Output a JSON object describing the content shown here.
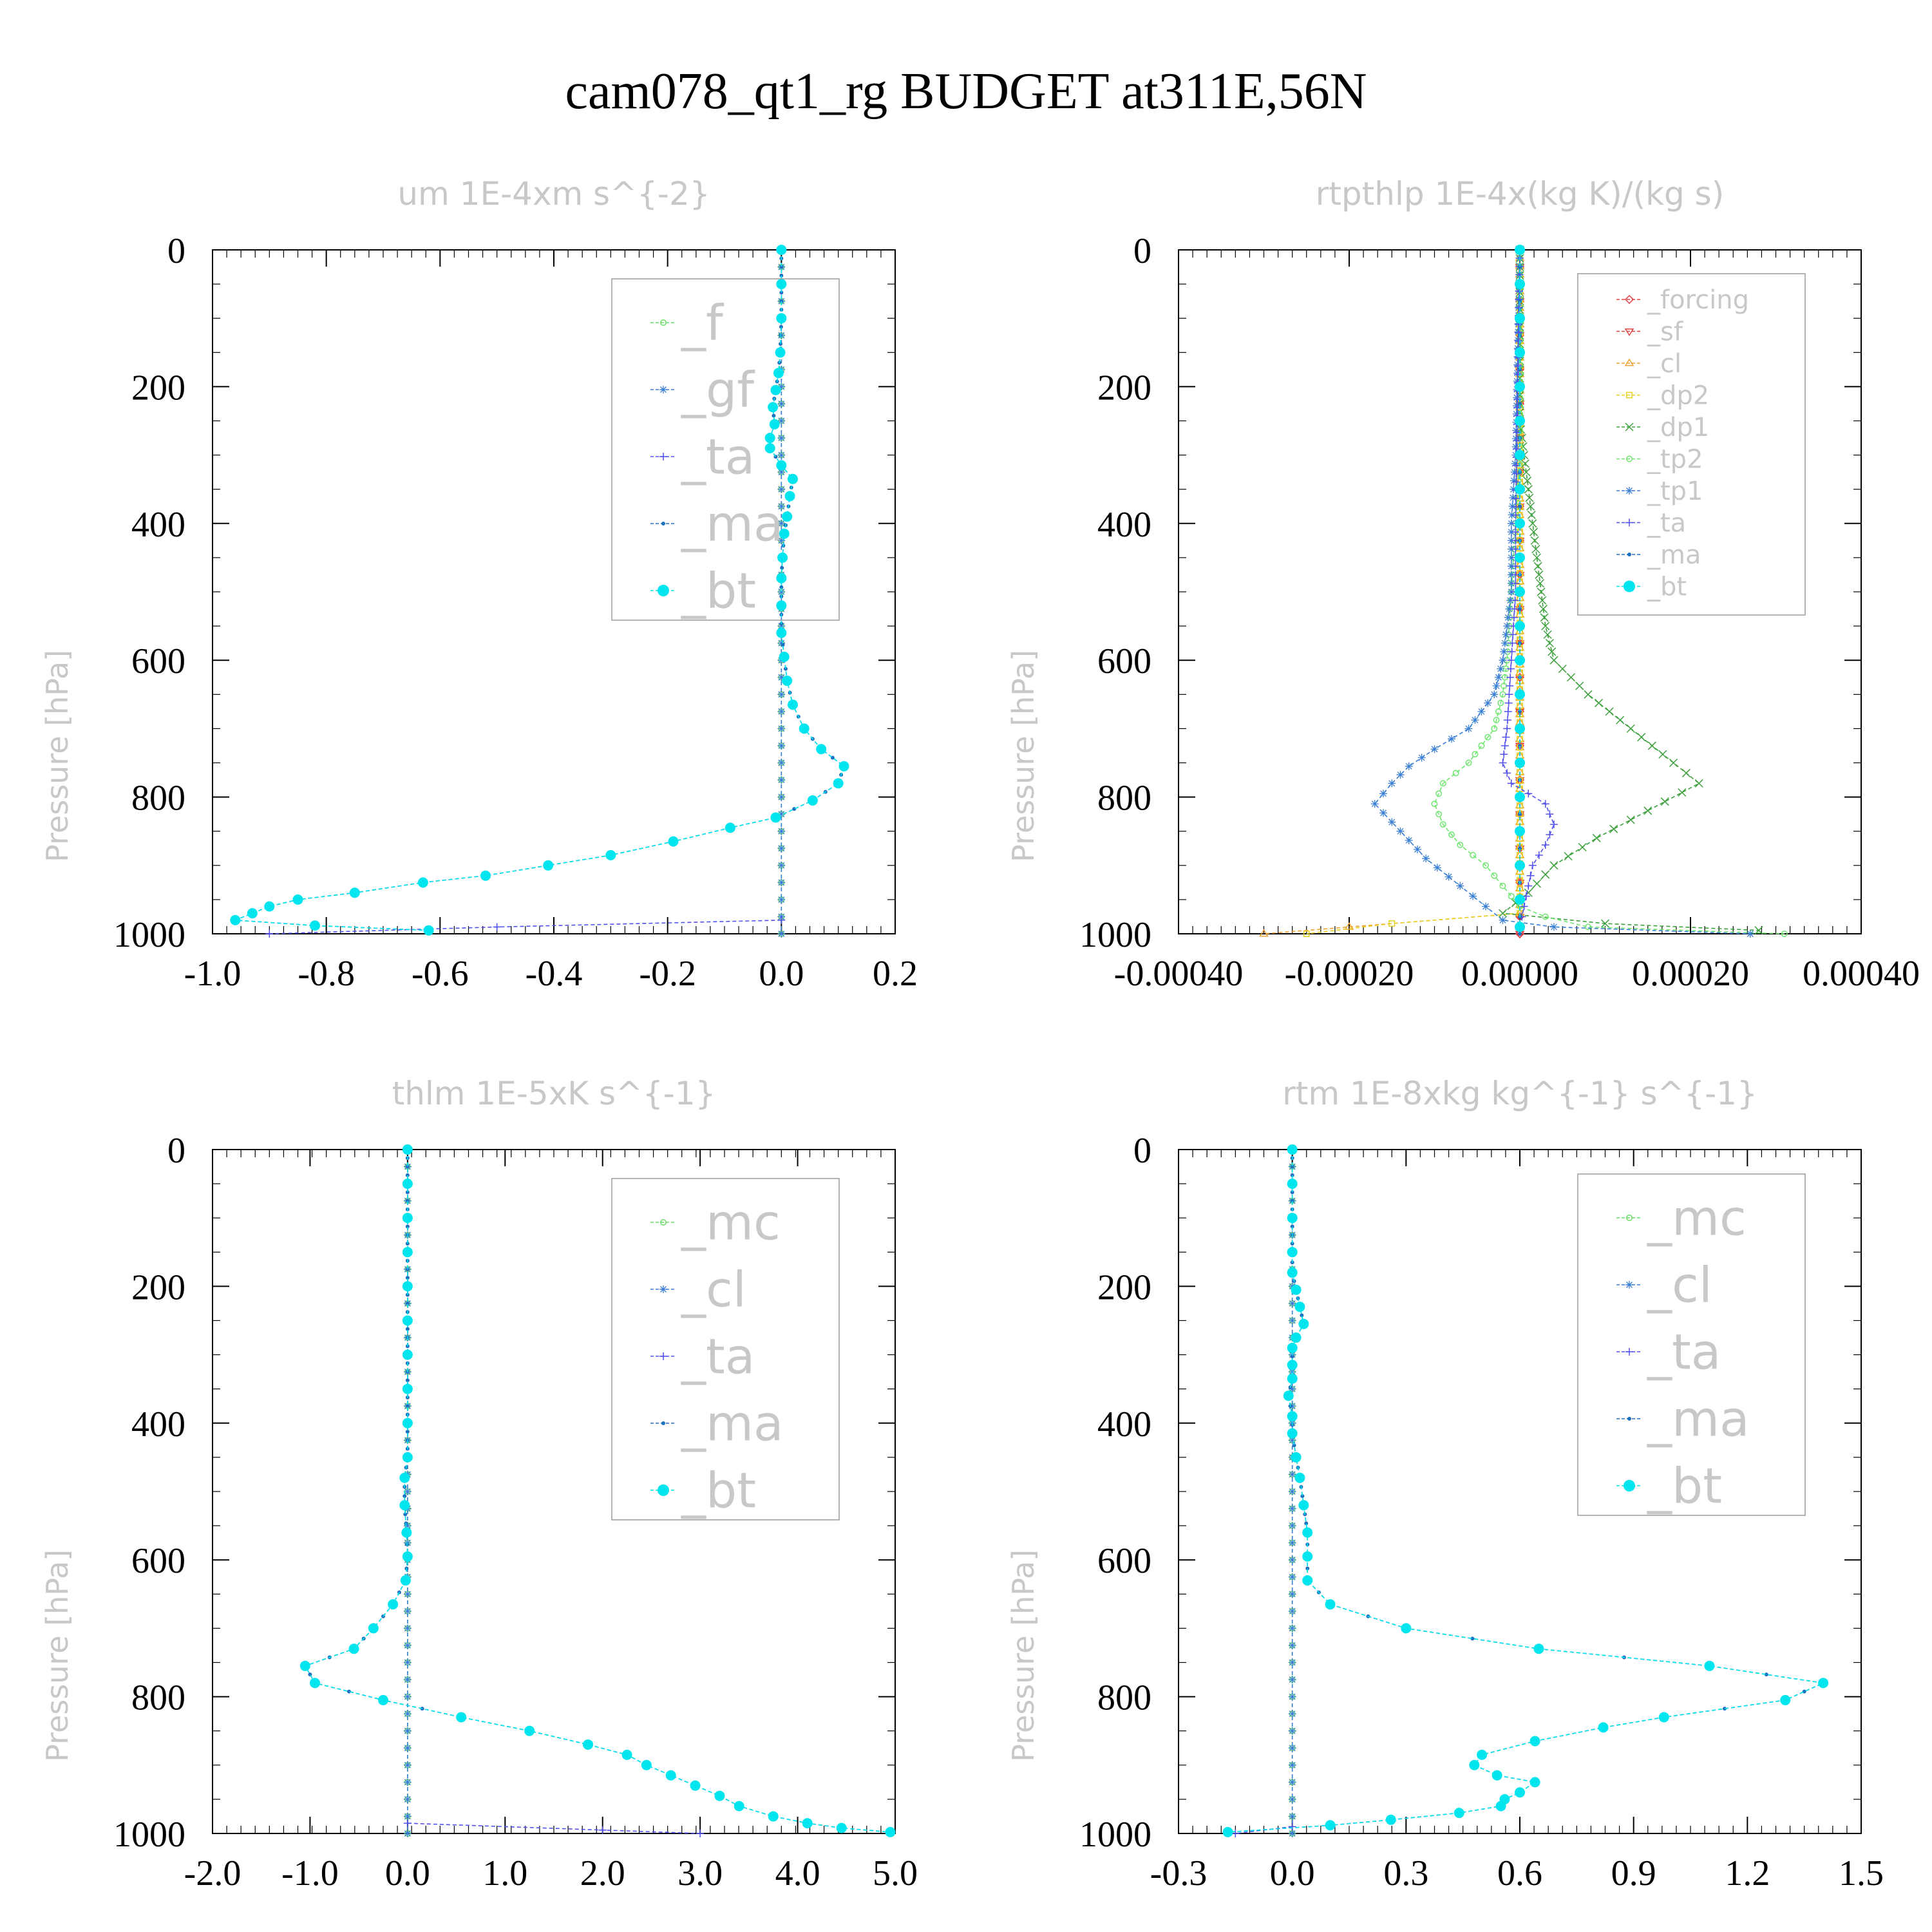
{
  "figure_title": "cam078_qt1_rg  BUDGET at311E,56N",
  "colors": {
    "f": "#66dd66",
    "mc": "#66dd66",
    "gf": "#3a7fd6",
    "cl": "#3a7fd6",
    "ta": "#5050ee",
    "ma": "#1e6fc0",
    "bt": "#00e5ee",
    "forcing": "#e04040",
    "sf": "#e04040",
    "cl_rt": "#f0a030",
    "dp2": "#e8d020",
    "dp1": "#3ca03c",
    "tp2": "#6ee66e",
    "tp1": "#3a7fd6"
  },
  "chart_data": [
    {
      "type": "line",
      "title": "um  1E-4xm s^{-2}",
      "ylabel": "Pressure [hPa]",
      "xlabel": "",
      "xlim": [
        -1.0,
        0.2
      ],
      "ylim": [
        1000,
        0
      ],
      "xticks": [
        "-1.0",
        "-0.8",
        "-0.6",
        "-0.4",
        "-0.2",
        "0.0",
        "0.2"
      ],
      "yticks": [
        "0",
        "200",
        "400",
        "600",
        "800",
        "1000"
      ],
      "legend": [
        "_f",
        "_gf",
        "_ta",
        "_ma",
        "_bt"
      ],
      "legend_position": "top-right",
      "series": [
        {
          "name": "_f",
          "p": [
            0,
            1000
          ],
          "x": [
            0.0,
            0.0
          ]
        },
        {
          "name": "_gf",
          "p": [
            0,
            1000
          ],
          "x": [
            0.0,
            0.0
          ]
        },
        {
          "name": "_ta",
          "p": [
            980,
            990,
            1000
          ],
          "x": [
            0.0,
            -0.5,
            -0.9
          ]
        },
        {
          "name": "_ma",
          "p": [
            0,
            50,
            100,
            150,
            180,
            205,
            230,
            255,
            275,
            290,
            315,
            335,
            360,
            390,
            415,
            450,
            480,
            520,
            560,
            595,
            630,
            665,
            700,
            730,
            755,
            780,
            805,
            830,
            845,
            865,
            885,
            900,
            915,
            925,
            940,
            950,
            960,
            970,
            980,
            988,
            995
          ],
          "x": [
            0.0,
            0.0,
            0.0,
            -0.002,
            -0.005,
            -0.01,
            -0.015,
            -0.012,
            -0.02,
            -0.02,
            0.0,
            0.02,
            0.015,
            0.01,
            0.005,
            0.002,
            0.0,
            0.0,
            0.0,
            0.005,
            0.01,
            0.02,
            0.04,
            0.07,
            0.11,
            0.1,
            0.055,
            -0.01,
            -0.09,
            -0.19,
            -0.3,
            -0.41,
            -0.52,
            -0.63,
            -0.75,
            -0.85,
            -0.9,
            -0.93,
            -0.96,
            -0.82,
            -0.62
          ]
        },
        {
          "name": "_bt",
          "p": [
            0,
            50,
            100,
            150,
            180,
            205,
            230,
            255,
            275,
            290,
            315,
            335,
            360,
            390,
            415,
            450,
            480,
            520,
            560,
            595,
            630,
            665,
            700,
            730,
            755,
            780,
            805,
            830,
            845,
            865,
            885,
            900,
            915,
            925,
            940,
            950,
            960,
            970,
            980,
            988,
            995
          ],
          "x": [
            0.0,
            0.0,
            0.0,
            -0.002,
            -0.005,
            -0.01,
            -0.015,
            -0.012,
            -0.02,
            -0.02,
            0.0,
            0.02,
            0.015,
            0.01,
            0.005,
            0.002,
            0.0,
            0.0,
            0.0,
            0.005,
            0.01,
            0.02,
            0.04,
            0.07,
            0.11,
            0.1,
            0.055,
            -0.01,
            -0.09,
            -0.19,
            -0.3,
            -0.41,
            -0.52,
            -0.63,
            -0.75,
            -0.85,
            -0.9,
            -0.93,
            -0.96,
            -0.82,
            -0.62
          ]
        }
      ]
    },
    {
      "type": "line",
      "title": "rtpthlp  1E-4x(kg K)/(kg s)",
      "ylabel": "Pressure [hPa]",
      "xlabel": "",
      "xlim": [
        -0.0004,
        0.0004
      ],
      "ylim": [
        1000,
        0
      ],
      "xticks": [
        "-0.00040",
        "-0.00020",
        "0.00000",
        "0.00020",
        "0.00040"
      ],
      "yticks": [
        "0",
        "200",
        "400",
        "600",
        "800",
        "1000"
      ],
      "legend": [
        "_forcing",
        "_sf",
        "_cl",
        "_dp2",
        "_dp1",
        "_tp2",
        "_tp1",
        "_ta",
        "_ma",
        "_bt"
      ],
      "legend_position": "top-right",
      "series": [
        {
          "name": "_forcing",
          "p": [
            0,
            1000
          ],
          "x": [
            0.0,
            0.0
          ]
        },
        {
          "name": "_sf",
          "p": [
            0,
            1000
          ],
          "x": [
            0.0,
            0.0
          ]
        },
        {
          "name": "_cl",
          "p": [
            0,
            970,
            990,
            1000
          ],
          "x": [
            0.0,
            0.0,
            -0.0002,
            -0.0003
          ]
        },
        {
          "name": "_dp2",
          "p": [
            0,
            970,
            985,
            1000
          ],
          "x": [
            0.0,
            0.0,
            -0.00015,
            -0.00025
          ]
        },
        {
          "name": "_dp1",
          "p": [
            0,
            250,
            300,
            350,
            400,
            450,
            500,
            550,
            600,
            650,
            700,
            750,
            780,
            820,
            860,
            900,
            940,
            970,
            985,
            995
          ],
          "x": [
            0.0,
            0.0,
            5e-06,
            1e-05,
            1.5e-05,
            2e-05,
            2.5e-05,
            3e-05,
            4e-05,
            8e-05,
            0.00013,
            0.00018,
            0.00021,
            0.00015,
            9e-05,
            4e-05,
            1e-05,
            -2e-05,
            0.0001,
            0.00028
          ]
        },
        {
          "name": "_tp2",
          "p": [
            0,
            300,
            400,
            500,
            600,
            650,
            700,
            750,
            780,
            810,
            840,
            870,
            900,
            930,
            960,
            975,
            990,
            1000
          ],
          "x": [
            0.0,
            0.0,
            -5e-06,
            -1e-05,
            -1.5e-05,
            -2e-05,
            -3e-05,
            -6e-05,
            -9e-05,
            -0.0001,
            -9e-05,
            -7e-05,
            -4e-05,
            -2e-05,
            0.0,
            3e-05,
            8e-05,
            0.00031
          ]
        },
        {
          "name": "_tp1",
          "p": [
            0,
            300,
            400,
            500,
            600,
            650,
            700,
            730,
            755,
            780,
            810,
            850,
            890,
            930,
            960,
            980,
            990,
            1000
          ],
          "x": [
            0.0,
            -5e-06,
            -1e-05,
            -1e-05,
            -2e-05,
            -3e-05,
            -6e-05,
            -0.0001,
            -0.00013,
            -0.00015,
            -0.00017,
            -0.00014,
            -0.00011,
            -7e-05,
            -4e-05,
            -2e-05,
            4e-05,
            0.00027
          ]
        },
        {
          "name": "_ta",
          "p": [
            0,
            400,
            500,
            600,
            700,
            750,
            780,
            810,
            840,
            870,
            900,
            930,
            960,
            990
          ],
          "x": [
            0.0,
            -5e-06,
            -5e-06,
            -1e-05,
            -1.5e-05,
            -2e-05,
            -1e-05,
            3e-05,
            4e-05,
            3e-05,
            1.5e-05,
            1e-05,
            5e-06,
            0.0
          ]
        },
        {
          "name": "_ma",
          "p": [
            0,
            1000
          ],
          "x": [
            0.0,
            0.0
          ]
        },
        {
          "name": "_bt",
          "p": [
            0,
            50,
            100,
            150,
            200,
            250,
            300,
            350,
            400,
            450,
            500,
            550,
            600,
            650,
            700,
            750,
            800,
            850,
            900,
            950,
            990
          ],
          "x": [
            0.0,
            0.0,
            0.0,
            0.0,
            0.0,
            0.0,
            0.0,
            0.0,
            0.0,
            0.0,
            0.0,
            0.0,
            0.0,
            0.0,
            0.0,
            0.0,
            0.0,
            0.0,
            0.0,
            0.0,
            0.0
          ]
        }
      ]
    },
    {
      "type": "line",
      "title": "thlm  1E-5xK s^{-1}",
      "ylabel": "Pressure [hPa]",
      "xlabel": "",
      "xlim": [
        -2.0,
        5.0
      ],
      "ylim": [
        1000,
        0
      ],
      "xticks": [
        "-2.0",
        "-1.0",
        "0.0",
        "1.0",
        "2.0",
        "3.0",
        "4.0",
        "5.0"
      ],
      "yticks": [
        "0",
        "200",
        "400",
        "600",
        "800",
        "1000"
      ],
      "legend": [
        "_mc",
        "_cl",
        "_ta",
        "_ma",
        "_bt"
      ],
      "legend_position": "top-right",
      "series": [
        {
          "name": "_mc",
          "p": [
            0,
            1000
          ],
          "x": [
            0.0,
            0.0
          ]
        },
        {
          "name": "_cl",
          "p": [
            0,
            1000
          ],
          "x": [
            0.0,
            0.0
          ]
        },
        {
          "name": "_ta",
          "p": [
            985,
            995,
            1000
          ],
          "x": [
            0.0,
            2.0,
            3.0
          ]
        },
        {
          "name": "_ma",
          "p": [
            0,
            50,
            100,
            150,
            200,
            250,
            300,
            350,
            400,
            450,
            480,
            520,
            560,
            595,
            630,
            665,
            700,
            730,
            755,
            780,
            805,
            830,
            850,
            870,
            885,
            900,
            915,
            930,
            945,
            960,
            975,
            985,
            992,
            998
          ],
          "x": [
            0.0,
            0.0,
            0.0,
            0.0,
            0.0,
            0.0,
            0.0,
            0.0,
            0.0,
            0.0,
            -0.03,
            -0.03,
            -0.01,
            0.0,
            -0.02,
            -0.15,
            -0.35,
            -0.55,
            -1.05,
            -0.95,
            -0.25,
            0.55,
            1.25,
            1.85,
            2.25,
            2.45,
            2.7,
            2.95,
            3.2,
            3.4,
            3.75,
            4.1,
            4.45,
            4.95
          ]
        },
        {
          "name": "_bt",
          "p": [
            0,
            50,
            100,
            150,
            200,
            250,
            300,
            350,
            400,
            450,
            480,
            520,
            560,
            595,
            630,
            665,
            700,
            730,
            755,
            780,
            805,
            830,
            850,
            870,
            885,
            900,
            915,
            930,
            945,
            960,
            975,
            985,
            992,
            998
          ],
          "x": [
            0.0,
            0.0,
            0.0,
            0.0,
            0.0,
            0.0,
            0.0,
            0.0,
            0.0,
            0.0,
            -0.03,
            -0.03,
            -0.01,
            0.0,
            -0.02,
            -0.15,
            -0.35,
            -0.55,
            -1.05,
            -0.95,
            -0.25,
            0.55,
            1.25,
            1.85,
            2.25,
            2.45,
            2.7,
            2.95,
            3.2,
            3.4,
            3.75,
            4.1,
            4.45,
            4.95
          ]
        }
      ]
    },
    {
      "type": "line",
      "title": "rtm  1E-8xkg kg^{-1} s^{-1}",
      "ylabel": "Pressure [hPa]",
      "xlabel": "",
      "xlim": [
        -0.3,
        1.5
      ],
      "ylim": [
        1000,
        0
      ],
      "xticks": [
        "-0.3",
        "0.0",
        "0.3",
        "0.6",
        "0.9",
        "1.2",
        "1.5"
      ],
      "yticks": [
        "0",
        "200",
        "400",
        "600",
        "800",
        "1000"
      ],
      "legend": [
        "_mc",
        "_cl",
        "_ta",
        "_ma",
        "_bt"
      ],
      "legend_position": "top-right",
      "series": [
        {
          "name": "_mc",
          "p": [
            0,
            1000
          ],
          "x": [
            0.0,
            0.0
          ]
        },
        {
          "name": "_cl",
          "p": [
            0,
            1000
          ],
          "x": [
            0.0,
            0.0
          ]
        },
        {
          "name": "_ta",
          "p": [
            990,
            1000
          ],
          "x": [
            0.0,
            -0.15
          ]
        },
        {
          "name": "_ma",
          "p": [
            0,
            50,
            100,
            150,
            180,
            205,
            230,
            255,
            275,
            290,
            315,
            335,
            360,
            390,
            415,
            450,
            480,
            520,
            560,
            595,
            630,
            665,
            700,
            730,
            755,
            780,
            805,
            830,
            845,
            865,
            885,
            900,
            915,
            925,
            940,
            950,
            960,
            970,
            980,
            988,
            998
          ],
          "x": [
            0.0,
            0.0,
            0.0,
            0.0,
            0.0,
            0.01,
            0.02,
            0.03,
            0.01,
            0.0,
            0.0,
            0.0,
            -0.01,
            0.0,
            0.0,
            0.01,
            0.02,
            0.03,
            0.04,
            0.04,
            0.04,
            0.1,
            0.3,
            0.65,
            1.1,
            1.4,
            1.3,
            0.98,
            0.82,
            0.64,
            0.5,
            0.48,
            0.54,
            0.64,
            0.6,
            0.56,
            0.55,
            0.44,
            0.26,
            0.1,
            -0.17
          ]
        },
        {
          "name": "_bt",
          "p": [
            0,
            50,
            100,
            150,
            180,
            205,
            230,
            255,
            275,
            290,
            315,
            335,
            360,
            390,
            415,
            450,
            480,
            520,
            560,
            595,
            630,
            665,
            700,
            730,
            755,
            780,
            805,
            830,
            845,
            865,
            885,
            900,
            915,
            925,
            940,
            950,
            960,
            970,
            980,
            988,
            998
          ],
          "x": [
            0.0,
            0.0,
            0.0,
            0.0,
            0.0,
            0.01,
            0.02,
            0.03,
            0.01,
            0.0,
            0.0,
            0.0,
            -0.01,
            0.0,
            0.0,
            0.01,
            0.02,
            0.03,
            0.04,
            0.04,
            0.04,
            0.1,
            0.3,
            0.65,
            1.1,
            1.4,
            1.3,
            0.98,
            0.82,
            0.64,
            0.5,
            0.48,
            0.54,
            0.64,
            0.6,
            0.56,
            0.55,
            0.44,
            0.26,
            0.1,
            -0.17
          ]
        }
      ]
    }
  ]
}
